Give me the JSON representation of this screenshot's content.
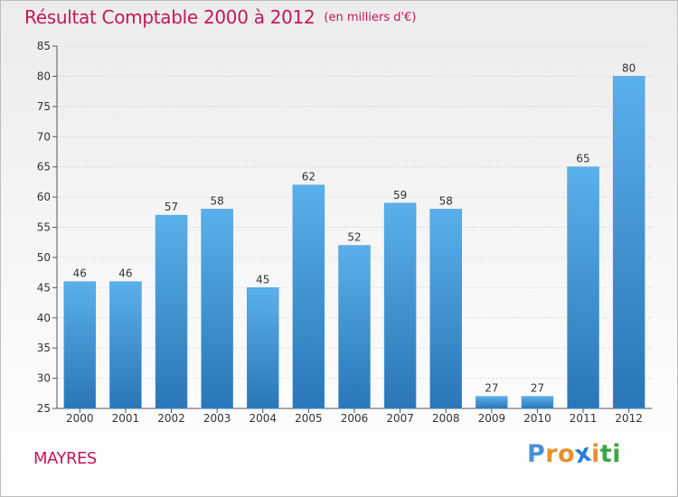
{
  "title": "Résultat Comptable 2000 à 2012",
  "unit": "(en milliers d'€)",
  "commune": "MAYRES",
  "logo": {
    "letters": [
      "P",
      "r",
      "o",
      "x",
      "i",
      "t",
      "i"
    ],
    "colors": [
      "#4a90d9",
      "#e8902c",
      "#e8902c",
      "#2a7fd4",
      "#e8902c",
      "#39a845",
      "#39a845"
    ]
  },
  "colors": {
    "title": "#c2185b",
    "bar_light": "#5aaee8",
    "bar_dark": "#2a78b8",
    "grid": "#cccccc",
    "axis": "#555555"
  },
  "chart_data": {
    "type": "bar",
    "title": "Résultat Comptable 2000 à 2012",
    "xlabel": "",
    "ylabel": "",
    "categories": [
      "2000",
      "2001",
      "2002",
      "2003",
      "2004",
      "2005",
      "2006",
      "2007",
      "2008",
      "2009",
      "2010",
      "2011",
      "2012"
    ],
    "values": [
      46,
      46,
      57,
      58,
      45,
      62,
      52,
      59,
      58,
      27,
      27,
      65,
      80
    ],
    "ylim": [
      25,
      85
    ],
    "yticks": [
      25,
      30,
      35,
      40,
      45,
      50,
      55,
      60,
      65,
      70,
      75,
      80,
      85
    ],
    "grid": true
  }
}
